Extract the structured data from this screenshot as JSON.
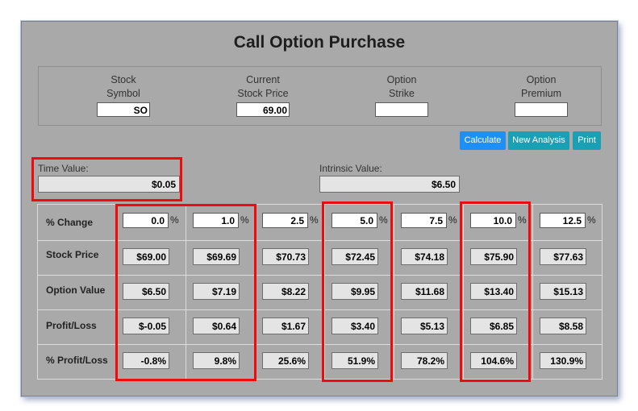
{
  "title": "Call Option Purchase",
  "inputs": [
    {
      "label_line1": "Stock",
      "label_line2": "Symbol",
      "value": "SO"
    },
    {
      "label_line1": "Current",
      "label_line2": "Stock Price",
      "value": "69.00"
    },
    {
      "label_line1": "Option",
      "label_line2": "Strike",
      "value": ""
    },
    {
      "label_line1": "Option",
      "label_line2": "Premium",
      "value": ""
    }
  ],
  "buttons": {
    "calculate": "Calculate",
    "new_analysis": "New Analysis",
    "print": "Print"
  },
  "time_value": {
    "label": "Time Value:",
    "value": "$0.05"
  },
  "intrinsic_value": {
    "label": "Intrinsic Value:",
    "value": "$6.50"
  },
  "table": {
    "row_labels": [
      "% Change",
      "Stock Price",
      "Option Value",
      "Profit/Loss",
      "% Profit/Loss"
    ],
    "percent_sign": "%",
    "pct_change": [
      "0.0",
      "1.0",
      "2.5",
      "5.0",
      "7.5",
      "10.0",
      "12.5"
    ],
    "stock_price": [
      "$69.00",
      "$69.69",
      "$70.73",
      "$72.45",
      "$74.18",
      "$75.90",
      "$77.63"
    ],
    "option_value": [
      "$6.50",
      "$7.19",
      "$8.22",
      "$9.95",
      "$11.68",
      "$13.40",
      "$15.13"
    ],
    "profit_loss": [
      "$-0.05",
      "$0.64",
      "$1.67",
      "$3.40",
      "$5.13",
      "$6.85",
      "$8.58"
    ],
    "pct_profit_loss": [
      "-0.8%",
      "9.8%",
      "25.6%",
      "51.9%",
      "78.2%",
      "104.6%",
      "130.9%"
    ]
  },
  "colors": {
    "highlight": "#ef0b0b",
    "panel": "#a9a9a9",
    "calculate": "#1e8ff5",
    "teal": "#19a0b4"
  }
}
